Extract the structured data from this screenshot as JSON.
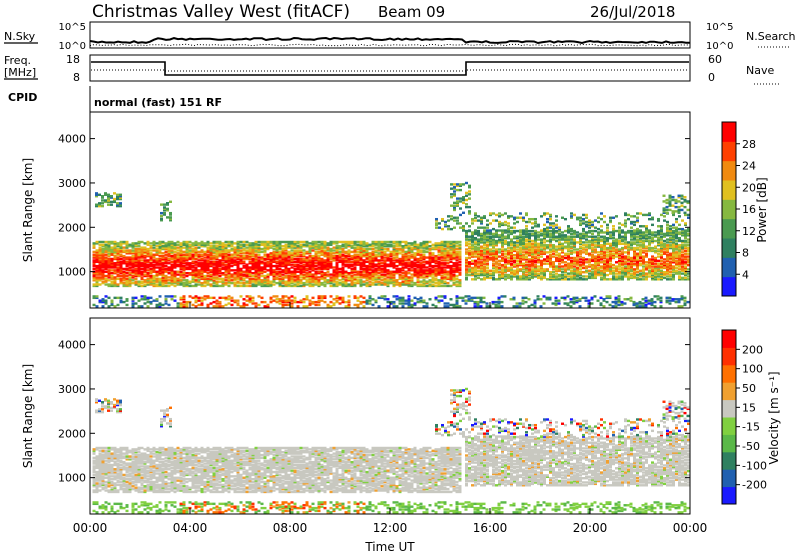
{
  "header": {
    "station": "Christmas Valley West (fitACF)",
    "beam": "Beam 09",
    "date": "26/Jul/2018"
  },
  "status_panels": {
    "nsky_label": "N.Sky",
    "nsky_ticks": [
      "10^5",
      "10^0"
    ],
    "nsearch_label": "N.Search",
    "nsearch_ticks": [
      "10^5",
      "10^0"
    ],
    "freq_label_1": "Freq.",
    "freq_label_2": "[MHz]",
    "freq_ticks": [
      "18",
      "8"
    ],
    "nave_label": "Nave",
    "nave_ticks": [
      "60",
      "0"
    ],
    "cpid_label": "CPID",
    "cpid_text": "normal (fast) 151 RF"
  },
  "chart_data": [
    {
      "type": "heatmap",
      "name": "power",
      "ylabel": "Slant Range [km]",
      "xlabel": "",
      "ylim": [
        180,
        4600
      ],
      "yticks": [
        "4000",
        "3000",
        "2000",
        "1000"
      ],
      "ytick_values": [
        4000,
        3000,
        2000,
        1000
      ],
      "colorbar_label": "Power [dB]",
      "colorbar_ticks": [
        "28",
        "24",
        "20",
        "16",
        "12",
        "8",
        "4"
      ],
      "colorbar_range": [
        0,
        32
      ],
      "colors": [
        "#1a1aff",
        "#2060b0",
        "#2f8060",
        "#4a9a50",
        "#86b840",
        "#e0c020",
        "#f08a10",
        "#ff4000",
        "#ff0000"
      ]
    },
    {
      "type": "heatmap",
      "name": "velocity",
      "ylabel": "Slant Range [km]",
      "xlabel": "Time UT",
      "ylim": [
        180,
        4600
      ],
      "yticks": [
        "4000",
        "3000",
        "2000",
        "1000"
      ],
      "ytick_values": [
        4000,
        3000,
        2000,
        1000
      ],
      "xticks": [
        "00:00",
        "04:00",
        "08:00",
        "12:00",
        "16:00",
        "20:00",
        "00:00"
      ],
      "xtick_hours": [
        0,
        4,
        8,
        12,
        16,
        20,
        24
      ],
      "colorbar_label": "Velocity [m s⁻¹]",
      "colorbar_ticks": [
        "200",
        "100",
        "50",
        "15",
        "-15",
        "-50",
        "-100",
        "-200"
      ],
      "colors": [
        "#1a1aff",
        "#2060b0",
        "#2f8060",
        "#5ab848",
        "#80d040",
        "#c8c8c0",
        "#f0a030",
        "#ff7000",
        "#ff3000",
        "#ff0000"
      ]
    }
  ]
}
